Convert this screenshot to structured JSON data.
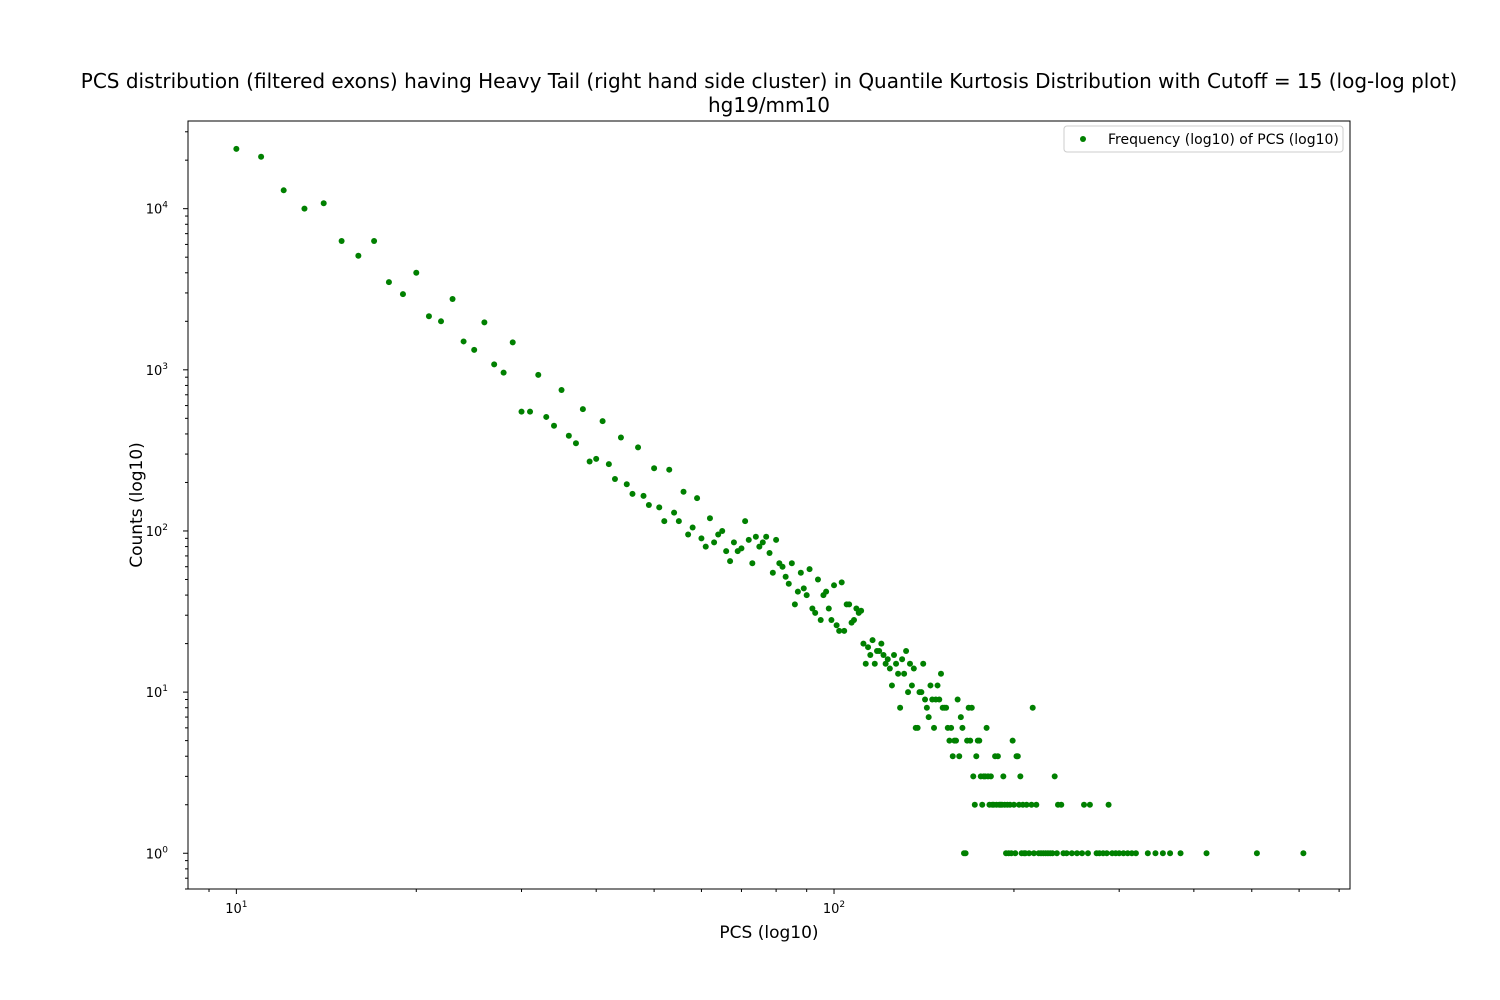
{
  "chart_data": {
    "type": "scatter",
    "title": "PCS distribution (filtered exons) having Heavy Tail (right hand side cluster) in Quantile Kurtosis Distribution with Cutoff = 15 (log-log plot)",
    "subtitle": "hg19/mm10",
    "xlabel": "PCS (log10)",
    "ylabel": "Counts (log10)",
    "xscale": "log",
    "yscale": "log",
    "xlim": [
      8.3,
      730
    ],
    "ylim": [
      0.6,
      35000
    ],
    "x_ticks": [
      {
        "base": "10",
        "exp": "1",
        "value": 10
      },
      {
        "base": "10",
        "exp": "2",
        "value": 100
      }
    ],
    "y_ticks": [
      {
        "base": "10",
        "exp": "0",
        "value": 1
      },
      {
        "base": "10",
        "exp": "1",
        "value": 10
      },
      {
        "base": "10",
        "exp": "2",
        "value": 100
      },
      {
        "base": "10",
        "exp": "3",
        "value": 1000
      },
      {
        "base": "10",
        "exp": "4",
        "value": 10000
      }
    ],
    "grid": false,
    "legend_position": "top-right",
    "color": "#008000",
    "series": [
      {
        "name": "Frequency (log10) of PCS (log10)",
        "points": [
          [
            10,
            23500
          ],
          [
            11,
            21000
          ],
          [
            12,
            13000
          ],
          [
            13,
            10000
          ],
          [
            14,
            10800
          ],
          [
            15,
            6300
          ],
          [
            16,
            5100
          ],
          [
            17,
            6300
          ],
          [
            18,
            3500
          ],
          [
            19,
            2950
          ],
          [
            20,
            4000
          ],
          [
            21,
            2150
          ],
          [
            22,
            2000
          ],
          [
            23,
            2750
          ],
          [
            24,
            1500
          ],
          [
            25,
            1330
          ],
          [
            26,
            1970
          ],
          [
            27,
            1080
          ],
          [
            28,
            960
          ],
          [
            29,
            1480
          ],
          [
            30,
            550
          ],
          [
            31,
            550
          ],
          [
            32,
            930
          ],
          [
            33,
            510
          ],
          [
            34,
            450
          ],
          [
            35,
            750
          ],
          [
            36,
            390
          ],
          [
            37,
            350
          ],
          [
            38,
            570
          ],
          [
            39,
            270
          ],
          [
            40,
            280
          ],
          [
            41,
            480
          ],
          [
            42,
            260
          ],
          [
            43,
            210
          ],
          [
            44,
            380
          ],
          [
            45,
            195
          ],
          [
            46,
            170
          ],
          [
            47,
            330
          ],
          [
            48,
            165
          ],
          [
            49,
            145
          ],
          [
            50,
            245
          ],
          [
            51,
            140
          ],
          [
            52,
            115
          ],
          [
            53,
            240
          ],
          [
            54,
            130
          ],
          [
            55,
            115
          ],
          [
            56,
            175
          ],
          [
            57,
            95
          ],
          [
            58,
            105
          ],
          [
            59,
            160
          ],
          [
            60,
            90
          ],
          [
            61,
            80
          ],
          [
            62,
            120
          ],
          [
            63,
            85
          ],
          [
            64,
            95
          ],
          [
            65,
            100
          ],
          [
            66,
            75
          ],
          [
            67,
            65
          ],
          [
            68,
            85
          ],
          [
            69,
            75
          ],
          [
            70,
            78
          ],
          [
            71,
            115
          ],
          [
            72,
            88
          ],
          [
            73,
            63
          ],
          [
            74,
            92
          ],
          [
            75,
            80
          ],
          [
            76,
            85
          ],
          [
            77,
            92
          ],
          [
            78,
            73
          ],
          [
            79,
            55
          ],
          [
            80,
            88
          ],
          [
            81,
            63
          ],
          [
            82,
            60
          ],
          [
            83,
            52
          ],
          [
            84,
            47
          ],
          [
            85,
            63
          ],
          [
            86,
            35
          ],
          [
            87,
            42
          ],
          [
            88,
            55
          ],
          [
            89,
            44
          ],
          [
            90,
            40
          ],
          [
            91,
            58
          ],
          [
            92,
            33
          ],
          [
            93,
            31
          ],
          [
            94,
            50
          ],
          [
            95,
            28
          ],
          [
            96,
            40
          ],
          [
            97,
            42
          ],
          [
            98,
            33
          ],
          [
            99,
            28
          ],
          [
            100,
            46
          ],
          [
            101,
            26
          ],
          [
            102,
            24
          ],
          [
            103,
            48
          ],
          [
            104,
            24
          ],
          [
            105,
            35
          ],
          [
            106,
            35
          ],
          [
            107,
            27
          ],
          [
            108,
            28
          ],
          [
            109,
            33
          ],
          [
            110,
            31
          ],
          [
            111,
            32
          ],
          [
            112,
            20
          ],
          [
            113,
            15
          ],
          [
            114,
            19
          ],
          [
            115,
            17
          ],
          [
            116,
            21
          ],
          [
            117,
            15
          ],
          [
            118,
            18
          ],
          [
            119,
            18
          ],
          [
            120,
            20
          ],
          [
            121,
            17
          ],
          [
            122,
            15
          ],
          [
            123,
            16
          ],
          [
            124,
            14
          ],
          [
            125,
            11
          ],
          [
            126,
            17
          ],
          [
            127,
            15
          ],
          [
            128,
            13
          ],
          [
            129,
            8
          ],
          [
            130,
            16
          ],
          [
            131,
            13
          ],
          [
            132,
            18
          ],
          [
            133,
            10
          ],
          [
            134,
            15
          ],
          [
            135,
            11
          ],
          [
            136,
            14
          ],
          [
            137,
            6
          ],
          [
            138,
            6
          ],
          [
            139,
            10
          ],
          [
            140,
            10
          ],
          [
            141,
            15
          ],
          [
            142,
            9
          ],
          [
            143,
            8
          ],
          [
            144,
            7
          ],
          [
            145,
            11
          ],
          [
            146,
            9
          ],
          [
            147,
            6
          ],
          [
            148,
            9
          ],
          [
            149,
            11
          ],
          [
            150,
            9
          ],
          [
            151,
            13
          ],
          [
            152,
            8
          ],
          [
            153,
            8
          ],
          [
            154,
            8
          ],
          [
            155,
            6
          ],
          [
            156,
            5
          ],
          [
            157,
            6
          ],
          [
            158,
            4
          ],
          [
            159,
            5
          ],
          [
            160,
            5
          ],
          [
            161,
            9
          ],
          [
            162,
            4
          ],
          [
            163,
            7
          ],
          [
            164,
            6
          ],
          [
            165,
            1
          ],
          [
            166,
            1
          ],
          [
            167,
            5
          ],
          [
            168,
            8
          ],
          [
            169,
            5
          ],
          [
            170,
            8
          ],
          [
            171,
            3
          ],
          [
            172,
            2
          ],
          [
            173,
            4
          ],
          [
            174,
            5
          ],
          [
            175,
            5
          ],
          [
            176,
            3
          ],
          [
            177,
            2
          ],
          [
            178,
            3
          ],
          [
            179,
            3
          ],
          [
            180,
            6
          ],
          [
            181,
            3
          ],
          [
            182,
            2
          ],
          [
            183,
            3
          ],
          [
            184,
            2
          ],
          [
            185,
            2
          ],
          [
            186,
            4
          ],
          [
            187,
            2
          ],
          [
            188,
            4
          ],
          [
            189,
            2
          ],
          [
            190,
            2
          ],
          [
            191,
            2
          ],
          [
            192,
            3
          ],
          [
            193,
            2
          ],
          [
            194,
            1
          ],
          [
            195,
            2
          ],
          [
            196,
            1
          ],
          [
            197,
            2
          ],
          [
            198,
            1
          ],
          [
            199,
            5
          ],
          [
            200,
            2
          ],
          [
            201,
            1
          ],
          [
            202,
            4
          ],
          [
            203,
            4
          ],
          [
            204,
            2
          ],
          [
            205,
            3
          ],
          [
            206,
            1
          ],
          [
            207,
            2
          ],
          [
            208,
            1
          ],
          [
            209,
            1
          ],
          [
            210,
            2
          ],
          [
            212,
            1
          ],
          [
            214,
            2
          ],
          [
            215,
            8
          ],
          [
            216,
            1
          ],
          [
            218,
            2
          ],
          [
            220,
            1
          ],
          [
            222,
            1
          ],
          [
            224,
            1
          ],
          [
            226,
            1
          ],
          [
            228,
            1
          ],
          [
            230,
            1
          ],
          [
            232,
            1
          ],
          [
            234,
            3
          ],
          [
            236,
            1
          ],
          [
            237,
            2
          ],
          [
            240,
            2
          ],
          [
            242,
            1
          ],
          [
            245,
            1
          ],
          [
            250,
            1
          ],
          [
            255,
            1
          ],
          [
            260,
            1
          ],
          [
            262,
            2
          ],
          [
            266,
            1
          ],
          [
            268,
            2
          ],
          [
            275,
            1
          ],
          [
            278,
            1
          ],
          [
            282,
            1
          ],
          [
            286,
            1
          ],
          [
            288,
            2
          ],
          [
            292,
            1
          ],
          [
            296,
            1
          ],
          [
            300,
            1
          ],
          [
            305,
            1
          ],
          [
            310,
            1
          ],
          [
            315,
            1
          ],
          [
            320,
            1
          ],
          [
            335,
            1
          ],
          [
            345,
            1
          ],
          [
            355,
            1
          ],
          [
            365,
            1
          ],
          [
            380,
            1
          ],
          [
            420,
            1
          ],
          [
            510,
            1
          ],
          [
            610,
            1
          ]
        ]
      }
    ]
  }
}
